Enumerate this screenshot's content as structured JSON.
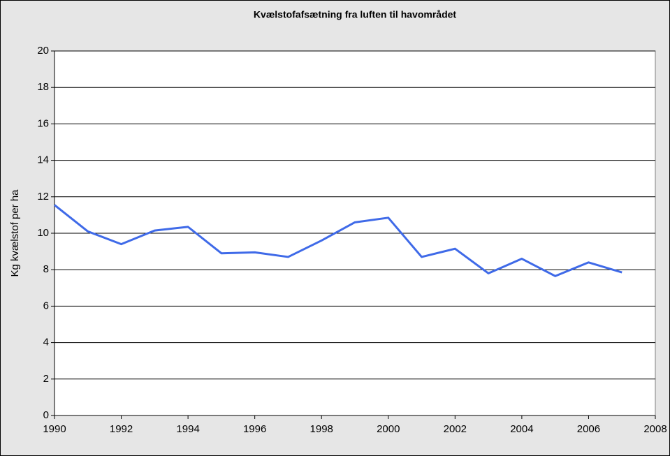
{
  "chart_data": {
    "type": "line",
    "title": "Kvælstofafsætning fra luften til havområdet",
    "ylabel": "Kg kvælstof per ha",
    "x": [
      1990,
      1991,
      1992,
      1993,
      1994,
      1995,
      1996,
      1997,
      1998,
      1999,
      2000,
      2001,
      2002,
      2003,
      2004,
      2005,
      2006,
      2007
    ],
    "series": [
      {
        "name": "Kvælstofafsætning",
        "color": "#3f6ae8",
        "values": [
          11.55,
          10.1,
          9.4,
          10.15,
          10.35,
          8.9,
          8.95,
          8.7,
          9.6,
          10.6,
          10.85,
          8.7,
          9.15,
          7.8,
          8.6,
          7.65,
          8.4,
          7.85
        ]
      }
    ],
    "xlim": [
      1990,
      2008
    ],
    "xticks": [
      1990,
      1992,
      1994,
      1996,
      1998,
      2000,
      2002,
      2004,
      2006,
      2008
    ],
    "ylim": [
      0,
      20
    ],
    "yticks": [
      0,
      2,
      4,
      6,
      8,
      10,
      12,
      14,
      16,
      18,
      20
    ],
    "grid": true
  }
}
